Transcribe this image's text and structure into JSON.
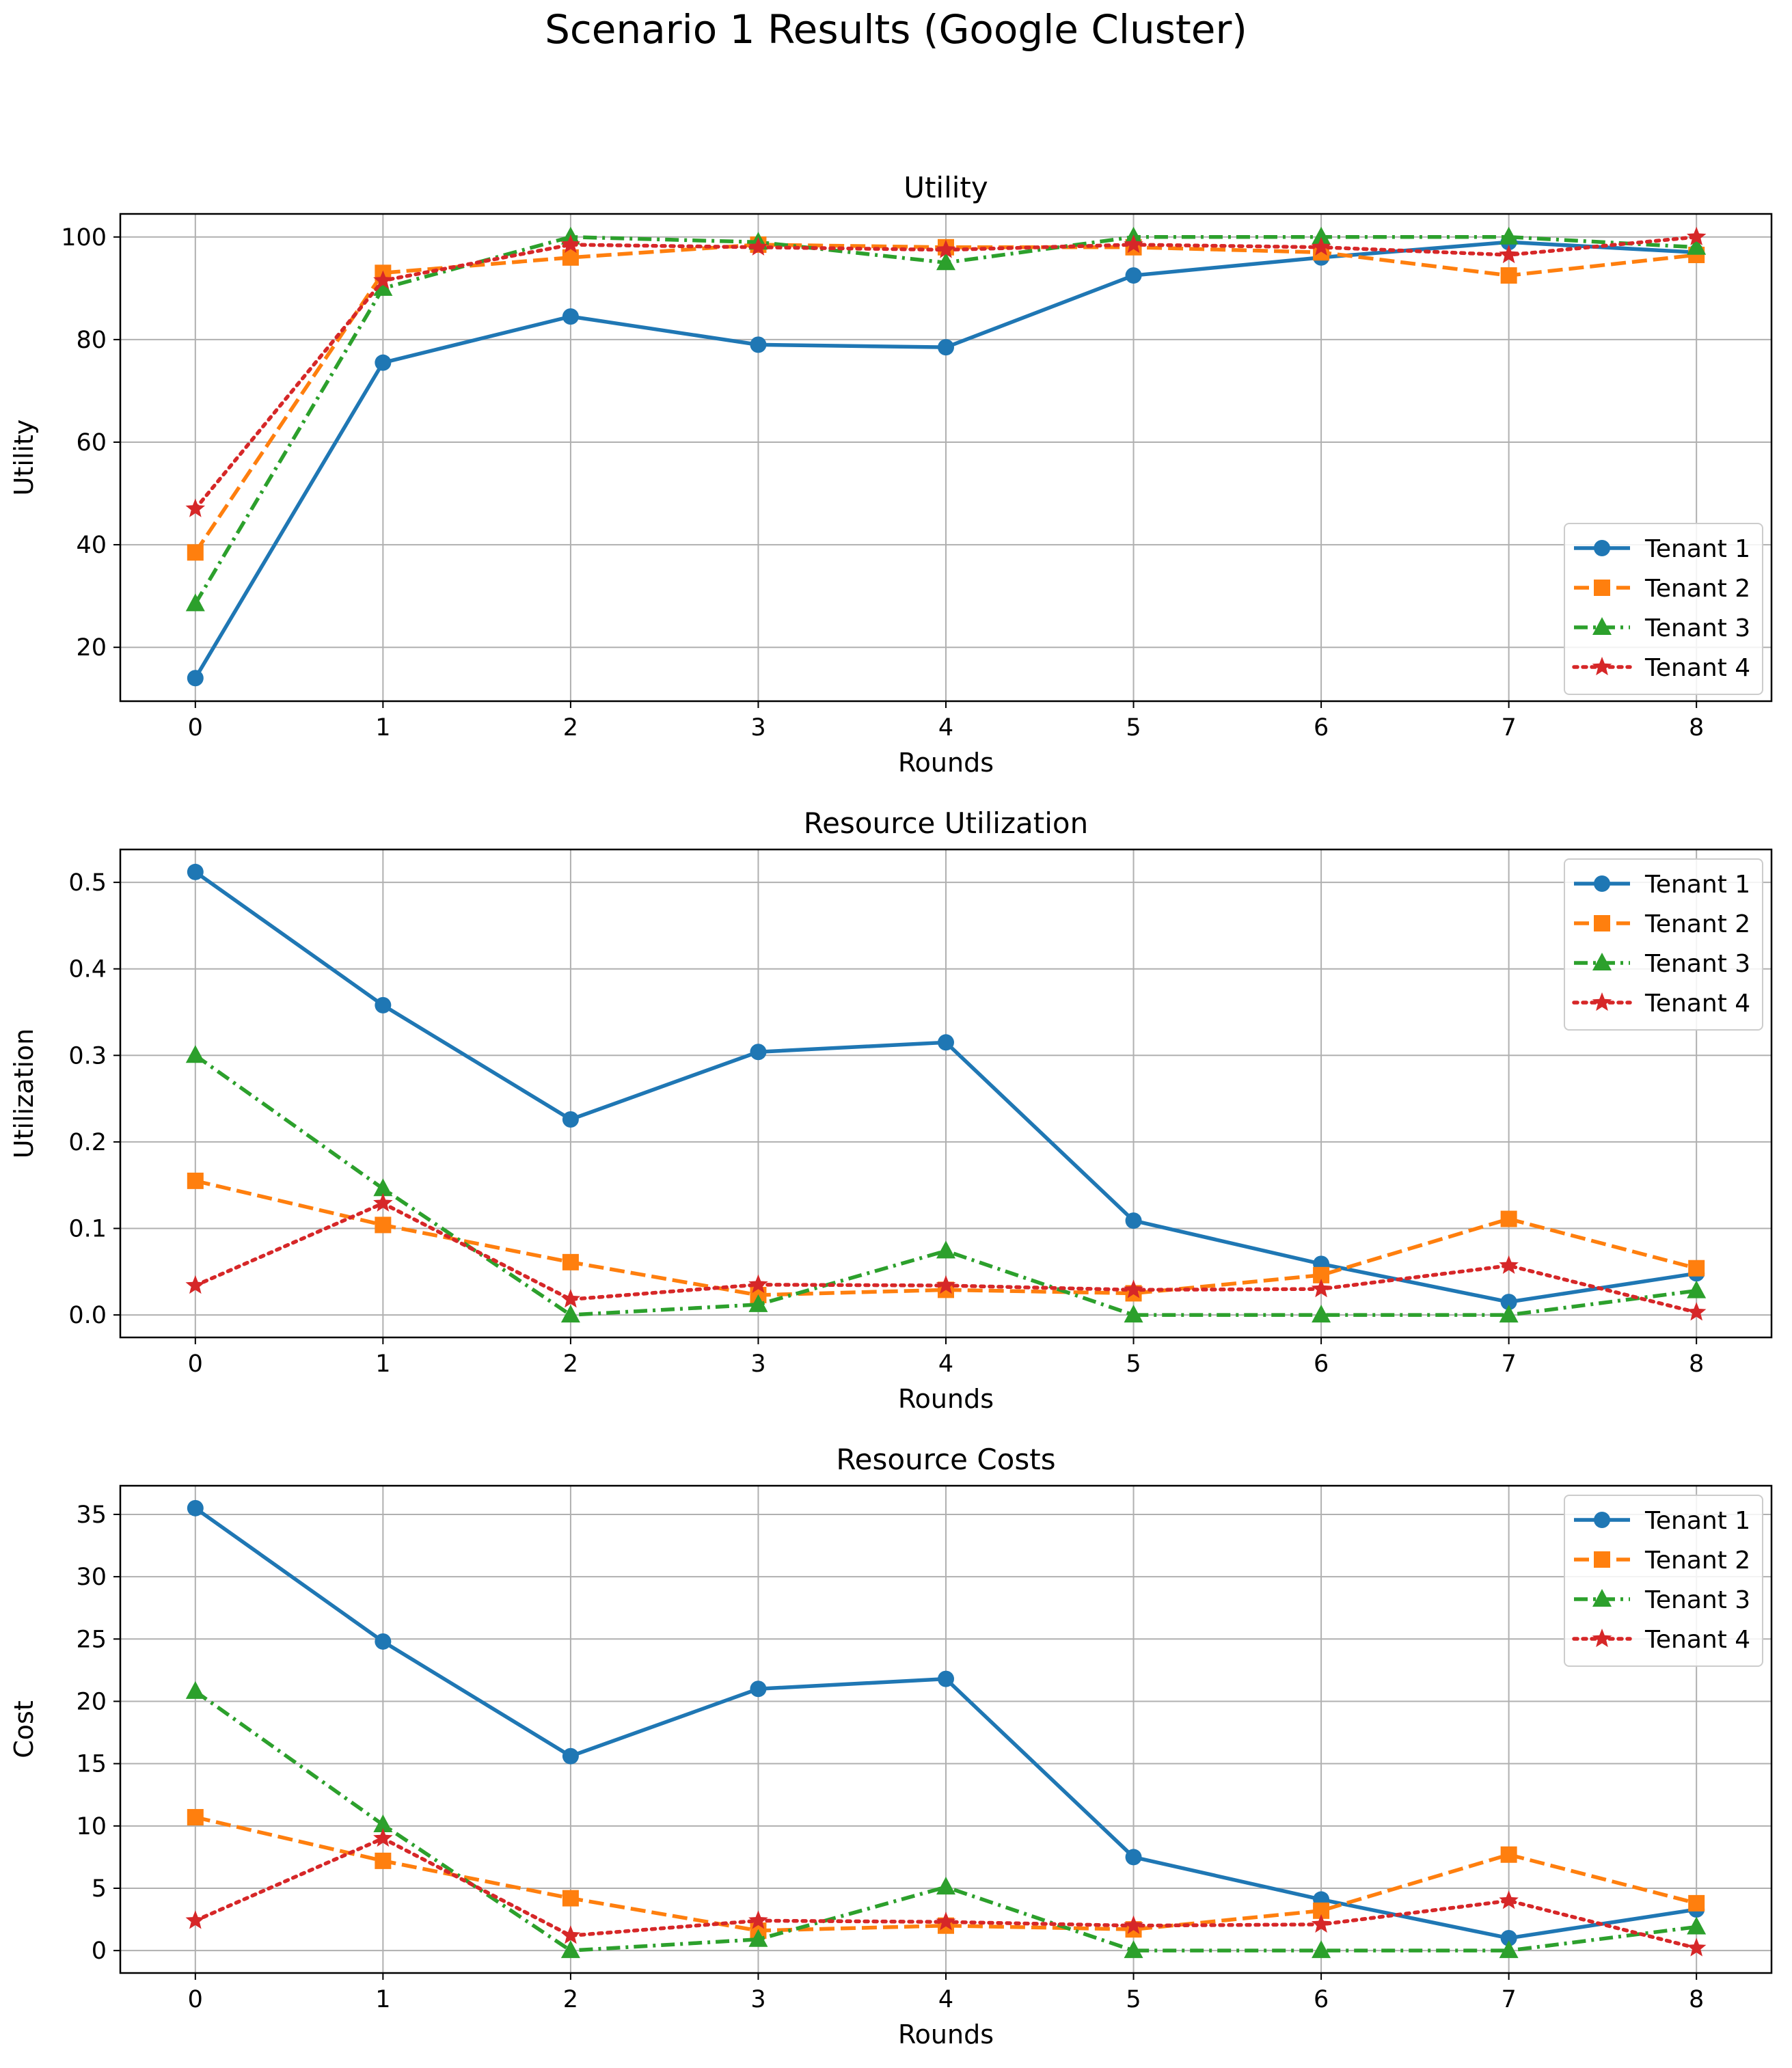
{
  "figure_title": "Scenario 1 Results (Google Cluster)",
  "colors": {
    "Tenant 1": "#1f77b4",
    "Tenant 2": "#ff7f0e",
    "Tenant 3": "#2ca02c",
    "Tenant 4": "#d62728",
    "grid": "#b0b0b0",
    "axes": "#000000"
  },
  "series_styles": {
    "Tenant 1": {
      "marker": "circle",
      "line": "solid"
    },
    "Tenant 2": {
      "marker": "square",
      "line": "dashed"
    },
    "Tenant 3": {
      "marker": "triangle",
      "line": "dashdot"
    },
    "Tenant 4": {
      "marker": "star",
      "line": "dotted"
    }
  },
  "chart_data": [
    {
      "type": "line",
      "title": "Utility",
      "xlabel": "Rounds",
      "ylabel": "Utility",
      "x": [
        0,
        1,
        2,
        3,
        4,
        5,
        6,
        7,
        8
      ],
      "xlim": [
        -0.4,
        8.4
      ],
      "ylim": [
        9.5,
        104.5
      ],
      "yticks": [
        20,
        40,
        60,
        80,
        100
      ],
      "ytick_labels": [
        "20",
        "40",
        "60",
        "80",
        "100"
      ],
      "grid": true,
      "legend": "lower right",
      "series": [
        {
          "name": "Tenant 1",
          "values": [
            14.0,
            75.5,
            84.5,
            79.0,
            78.5,
            92.5,
            96.0,
            99.0,
            97.0
          ]
        },
        {
          "name": "Tenant 2",
          "values": [
            38.5,
            93.0,
            96.0,
            98.5,
            98.0,
            98.0,
            97.0,
            92.5,
            96.5
          ]
        },
        {
          "name": "Tenant 3",
          "values": [
            28.5,
            90.0,
            100.0,
            99.0,
            95.0,
            100.0,
            100.0,
            100.0,
            98.0
          ]
        },
        {
          "name": "Tenant 4",
          "values": [
            47.0,
            91.5,
            98.5,
            98.0,
            97.5,
            98.5,
            98.0,
            96.5,
            100.0
          ]
        }
      ]
    },
    {
      "type": "line",
      "title": "Resource Utilization",
      "xlabel": "Rounds",
      "ylabel": "Utilization",
      "x": [
        0,
        1,
        2,
        3,
        4,
        5,
        6,
        7,
        8
      ],
      "xlim": [
        -0.4,
        8.4
      ],
      "ylim": [
        -0.026,
        0.538
      ],
      "yticks": [
        0.0,
        0.1,
        0.2,
        0.3,
        0.4,
        0.5
      ],
      "ytick_labels": [
        "0.0",
        "0.1",
        "0.2",
        "0.3",
        "0.4",
        "0.5"
      ],
      "grid": true,
      "legend": "upper right",
      "series": [
        {
          "name": "Tenant 1",
          "values": [
            0.512,
            0.358,
            0.226,
            0.304,
            0.315,
            0.109,
            0.059,
            0.015,
            0.048
          ]
        },
        {
          "name": "Tenant 2",
          "values": [
            0.155,
            0.104,
            0.061,
            0.023,
            0.029,
            0.025,
            0.046,
            0.111,
            0.054
          ]
        },
        {
          "name": "Tenant 3",
          "values": [
            0.3,
            0.146,
            0.0,
            0.012,
            0.074,
            0.0,
            0.0,
            0.0,
            0.028
          ]
        },
        {
          "name": "Tenant 4",
          "values": [
            0.034,
            0.129,
            0.018,
            0.035,
            0.034,
            0.029,
            0.03,
            0.057,
            0.003
          ]
        }
      ]
    },
    {
      "type": "line",
      "title": "Resource Costs",
      "xlabel": "Rounds",
      "ylabel": "Cost",
      "x": [
        0,
        1,
        2,
        3,
        4,
        5,
        6,
        7,
        8
      ],
      "xlim": [
        -0.4,
        8.4
      ],
      "ylim": [
        -1.8,
        37.3
      ],
      "yticks": [
        0,
        5,
        10,
        15,
        20,
        25,
        30,
        35
      ],
      "ytick_labels": [
        "0",
        "5",
        "10",
        "15",
        "20",
        "25",
        "30",
        "35"
      ],
      "grid": true,
      "legend": "upper right",
      "series": [
        {
          "name": "Tenant 1",
          "values": [
            35.5,
            24.8,
            15.6,
            21.0,
            21.8,
            7.5,
            4.1,
            1.0,
            3.3
          ]
        },
        {
          "name": "Tenant 2",
          "values": [
            10.7,
            7.2,
            4.2,
            1.6,
            2.0,
            1.7,
            3.2,
            7.7,
            3.8
          ]
        },
        {
          "name": "Tenant 3",
          "values": [
            20.8,
            10.1,
            0.0,
            0.9,
            5.1,
            0.0,
            0.0,
            0.0,
            1.9
          ]
        },
        {
          "name": "Tenant 4",
          "values": [
            2.4,
            9.0,
            1.2,
            2.4,
            2.3,
            2.0,
            2.1,
            4.0,
            0.2
          ]
        }
      ]
    }
  ]
}
